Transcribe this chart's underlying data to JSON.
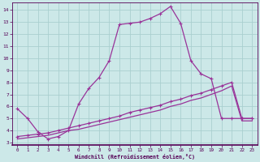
{
  "xlabel": "Windchill (Refroidissement éolien,°C)",
  "bg_color": "#cce8e8",
  "grid_color": "#aacfcf",
  "line_color": "#993399",
  "xlim": [
    -0.5,
    23.5
  ],
  "ylim": [
    2.8,
    14.6
  ],
  "xticks": [
    0,
    1,
    2,
    3,
    4,
    5,
    6,
    7,
    8,
    9,
    10,
    11,
    12,
    13,
    14,
    15,
    16,
    17,
    18,
    19,
    20,
    21,
    22,
    23
  ],
  "yticks": [
    3,
    4,
    5,
    6,
    7,
    8,
    9,
    10,
    11,
    12,
    13,
    14
  ],
  "curve1_x": [
    0,
    1,
    2,
    3,
    4,
    5,
    6,
    7,
    8,
    9,
    10,
    11,
    12,
    13,
    14,
    15,
    16,
    17,
    18,
    19,
    20,
    21,
    22,
    23
  ],
  "curve1_y": [
    5.8,
    5.0,
    3.9,
    3.3,
    3.5,
    4.0,
    6.2,
    7.5,
    8.4,
    9.8,
    12.8,
    12.9,
    13.0,
    13.3,
    13.7,
    14.3,
    12.9,
    9.8,
    8.7,
    8.3,
    5.0,
    5.0,
    5.0,
    5.0
  ],
  "curve2_x": [
    0,
    1,
    2,
    3,
    4,
    5,
    6,
    7,
    8,
    9,
    10,
    11,
    12,
    13,
    14,
    15,
    16,
    17,
    18,
    19,
    20,
    21,
    22,
    23
  ],
  "curve2_y": [
    3.5,
    3.6,
    3.7,
    3.8,
    4.0,
    4.2,
    4.4,
    4.6,
    4.8,
    5.0,
    5.2,
    5.5,
    5.7,
    5.9,
    6.1,
    6.4,
    6.6,
    6.9,
    7.1,
    7.4,
    7.7,
    8.0,
    5.0,
    5.0
  ],
  "curve3_x": [
    0,
    1,
    2,
    3,
    4,
    5,
    6,
    7,
    8,
    9,
    10,
    11,
    12,
    13,
    14,
    15,
    16,
    17,
    18,
    19,
    20,
    21,
    22,
    23
  ],
  "curve3_y": [
    3.3,
    3.4,
    3.5,
    3.6,
    3.8,
    4.0,
    4.1,
    4.3,
    4.5,
    4.7,
    4.9,
    5.1,
    5.3,
    5.5,
    5.7,
    6.0,
    6.2,
    6.5,
    6.7,
    7.0,
    7.3,
    7.7,
    4.8,
    4.8
  ]
}
